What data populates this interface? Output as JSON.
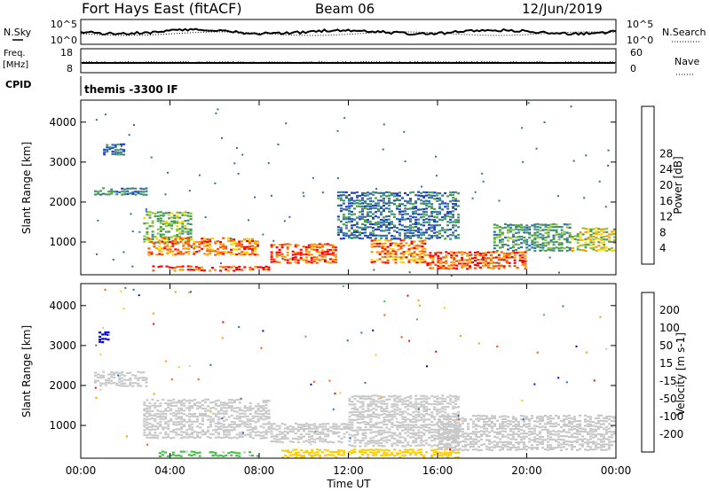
{
  "header": {
    "station": "Fort Hays East (fitACF)",
    "beam": "Beam 06",
    "date": "12/Jun/2019"
  },
  "top_panels": {
    "nsky": {
      "label": "N.Sky",
      "left_ticks": [
        "10^5",
        "10^0"
      ],
      "right_ticks": [
        "10^5",
        "10^0"
      ],
      "right_label": "N.Search"
    },
    "freq": {
      "label_line1": "Freq.",
      "label_line2": "[MHz]",
      "left_ticks": [
        "18",
        "8"
      ],
      "right_ticks": [
        "60",
        "0"
      ],
      "right_label": "Nave"
    },
    "cpid": {
      "label": "CPID",
      "program": "themis -3300 IF"
    }
  },
  "x_axis": {
    "title": "Time UT",
    "ticks": [
      "00:00",
      "04:00",
      "08:00",
      "12:00",
      "16:00",
      "20:00",
      "00:00"
    ]
  },
  "power_panel": {
    "y_title": "Slant Range [km]",
    "y_ticks": [
      "1000",
      "2000",
      "3000",
      "4000"
    ],
    "colorbar_title": "Power [dB]",
    "colorbar_ticks": [
      "4",
      "8",
      "12",
      "16",
      "20",
      "24",
      "28"
    ],
    "colors": [
      "#0000ff",
      "#2040c0",
      "#2e6fa8",
      "#3f8f78",
      "#4da044",
      "#8ec63a",
      "#ffd400",
      "#ff9900",
      "#ff5500",
      "#ff0000"
    ]
  },
  "velocity_panel": {
    "y_title": "Slant Range [km]",
    "y_ticks": [
      "1000",
      "2000",
      "3000",
      "4000"
    ],
    "colorbar_title": "Velocity [m s-1]",
    "colorbar_ticks": [
      "200",
      "100",
      "50",
      "15",
      "-15",
      "-50",
      "-100",
      "-200"
    ],
    "colors": [
      "#0000dd",
      "#1e6fd0",
      "#2e8b57",
      "#44c044",
      "#c8c8c8",
      "#ffcc00",
      "#ff9900",
      "#ff5500",
      "#ff0000"
    ]
  },
  "chart_data": [
    {
      "type": "heatmap",
      "title": "Power [dB]",
      "xlabel": "Time UT",
      "ylabel": "Slant Range [km]",
      "x_range_hours": [
        0,
        24
      ],
      "ylim": [
        180,
        4550
      ],
      "value_range": [
        0,
        30
      ],
      "echo_bands": [
        {
          "t0": 0.6,
          "t1": 3.0,
          "r0": 2200,
          "r1": 2400,
          "value": 10
        },
        {
          "t0": 1.0,
          "t1": 2.0,
          "r0": 3200,
          "r1": 3500,
          "value": 8
        },
        {
          "t0": 2.8,
          "t1": 5.0,
          "r0": 1000,
          "r1": 1800,
          "value": 14
        },
        {
          "t0": 3.0,
          "t1": 8.0,
          "r0": 700,
          "r1": 1150,
          "value": 24
        },
        {
          "t0": 8.5,
          "t1": 11.5,
          "r0": 500,
          "r1": 1000,
          "value": 26
        },
        {
          "t0": 3.2,
          "t1": 8.5,
          "r0": 300,
          "r1": 450,
          "value": 27
        },
        {
          "t0": 11.5,
          "t1": 17.0,
          "r0": 1100,
          "r1": 2300,
          "value": 8
        },
        {
          "t0": 13.0,
          "t1": 15.5,
          "r0": 500,
          "r1": 1100,
          "value": 24
        },
        {
          "t0": 15.5,
          "t1": 20.0,
          "r0": 350,
          "r1": 800,
          "value": 26
        },
        {
          "t0": 18.5,
          "t1": 22.0,
          "r0": 800,
          "r1": 1500,
          "value": 12
        },
        {
          "t0": 22.0,
          "t1": 24.0,
          "r0": 800,
          "r1": 1400,
          "value": 18
        }
      ]
    },
    {
      "type": "heatmap",
      "title": "Velocity [m s-1]",
      "xlabel": "Time UT",
      "ylabel": "Slant Range [km]",
      "x_range_hours": [
        0,
        24
      ],
      "ylim": [
        180,
        4550
      ],
      "value_range": [
        -200,
        200
      ],
      "echo_bands": [
        {
          "t0": 0.6,
          "t1": 3.0,
          "r0": 2000,
          "r1": 2400,
          "value": 0
        },
        {
          "t0": 0.8,
          "t1": 1.3,
          "r0": 3100,
          "r1": 3400,
          "value": 180
        },
        {
          "t0": 2.8,
          "t1": 8.5,
          "r0": 700,
          "r1": 1700,
          "value": 0
        },
        {
          "t0": 8.5,
          "t1": 12.0,
          "r0": 600,
          "r1": 1100,
          "value": 0
        },
        {
          "t0": 9.0,
          "t1": 17.0,
          "r0": 200,
          "r1": 450,
          "value": -40
        },
        {
          "t0": 12.0,
          "t1": 17.0,
          "r0": 500,
          "r1": 1800,
          "value": 0
        },
        {
          "t0": 16.0,
          "t1": 24.0,
          "r0": 400,
          "r1": 1300,
          "value": 0
        },
        {
          "t0": 3.5,
          "t1": 8.0,
          "r0": 250,
          "r1": 400,
          "value": 30
        }
      ]
    }
  ]
}
